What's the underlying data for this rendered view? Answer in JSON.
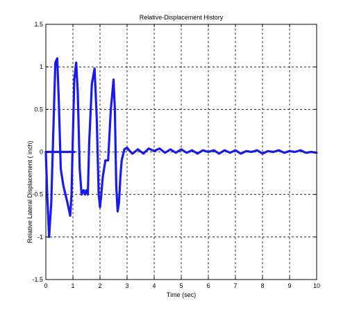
{
  "chart_data": {
    "type": "line",
    "title": "Relative-Displacement History",
    "xlabel": "Time (sec)",
    "ylabel": "Relative Lateral Displacement ( inch)",
    "xlim": [
      0,
      10
    ],
    "ylim": [
      -1.5,
      1.5
    ],
    "x_ticks": [
      0,
      1,
      2,
      3,
      4,
      5,
      6,
      7,
      8,
      9,
      10
    ],
    "y_ticks": [
      -1.5,
      -1,
      -0.5,
      0,
      0.5,
      1,
      1.5
    ],
    "x_tick_labels": [
      "0",
      "1",
      "2",
      "3",
      "4",
      "5",
      "6",
      "7",
      "8",
      "9",
      "10"
    ],
    "y_tick_labels": [
      "-1.5",
      "-1",
      "-0.5",
      "0",
      "0.5",
      "1",
      "1.5"
    ],
    "grid": true,
    "grid_style": "dashed",
    "series_color": "#1a1aee",
    "series": [
      {
        "x": [
          0,
          0.05,
          0.12,
          0.2,
          0.3,
          0.35,
          0.42,
          0.48,
          0.55,
          0.65,
          0.8,
          0.9,
          0.95,
          1.0,
          1.05,
          1.12,
          1.18,
          1.25,
          1.32,
          1.4,
          1.45,
          1.5,
          1.55,
          1.6,
          1.7,
          1.8,
          1.88,
          1.95,
          2.0,
          2.05,
          2.1,
          2.2,
          2.3,
          2.4,
          2.5,
          2.55,
          2.6,
          2.65,
          2.7,
          2.75,
          2.8,
          2.9,
          3.0,
          3.1,
          3.2,
          3.4,
          3.6,
          3.8,
          4.0,
          4.2,
          4.4,
          4.6,
          4.8,
          5.0,
          5.2,
          5.4,
          5.6,
          5.8,
          6.0,
          6.2,
          6.4,
          6.6,
          6.8,
          7.0,
          7.2,
          7.4,
          7.6,
          7.8,
          8.0,
          8.2,
          8.4,
          8.6,
          8.8,
          9.0,
          9.2,
          9.4,
          9.6,
          9.8,
          10.0
        ],
        "y": [
          0,
          -0.5,
          -1.0,
          -0.6,
          0.5,
          1.05,
          1.1,
          0.6,
          -0.2,
          -0.4,
          -0.6,
          -0.75,
          -0.5,
          0.2,
          0.85,
          1.05,
          0.7,
          -0.2,
          -0.5,
          -0.45,
          -0.5,
          -0.45,
          -0.5,
          0.1,
          0.8,
          0.98,
          0.4,
          -0.5,
          -0.65,
          -0.5,
          -0.3,
          -0.1,
          -0.1,
          0.5,
          0.85,
          0.5,
          -0.4,
          -0.7,
          -0.6,
          -0.3,
          -0.1,
          0.03,
          0.05,
          0.01,
          -0.02,
          0.03,
          -0.02,
          0.04,
          0.01,
          0.04,
          -0.01,
          0.03,
          -0.01,
          0.03,
          -0.01,
          0.02,
          -0.02,
          0.02,
          0.0,
          0.02,
          -0.02,
          0.02,
          -0.01,
          0.02,
          -0.02,
          0.01,
          0.0,
          0.02,
          -0.02,
          0.01,
          0.0,
          0.02,
          -0.01,
          0.01,
          0.0,
          0.02,
          -0.01,
          0.0,
          -0.01
        ]
      },
      {
        "x": [
          0.0,
          1.05
        ],
        "y": [
          0.0,
          0.0
        ]
      }
    ]
  }
}
